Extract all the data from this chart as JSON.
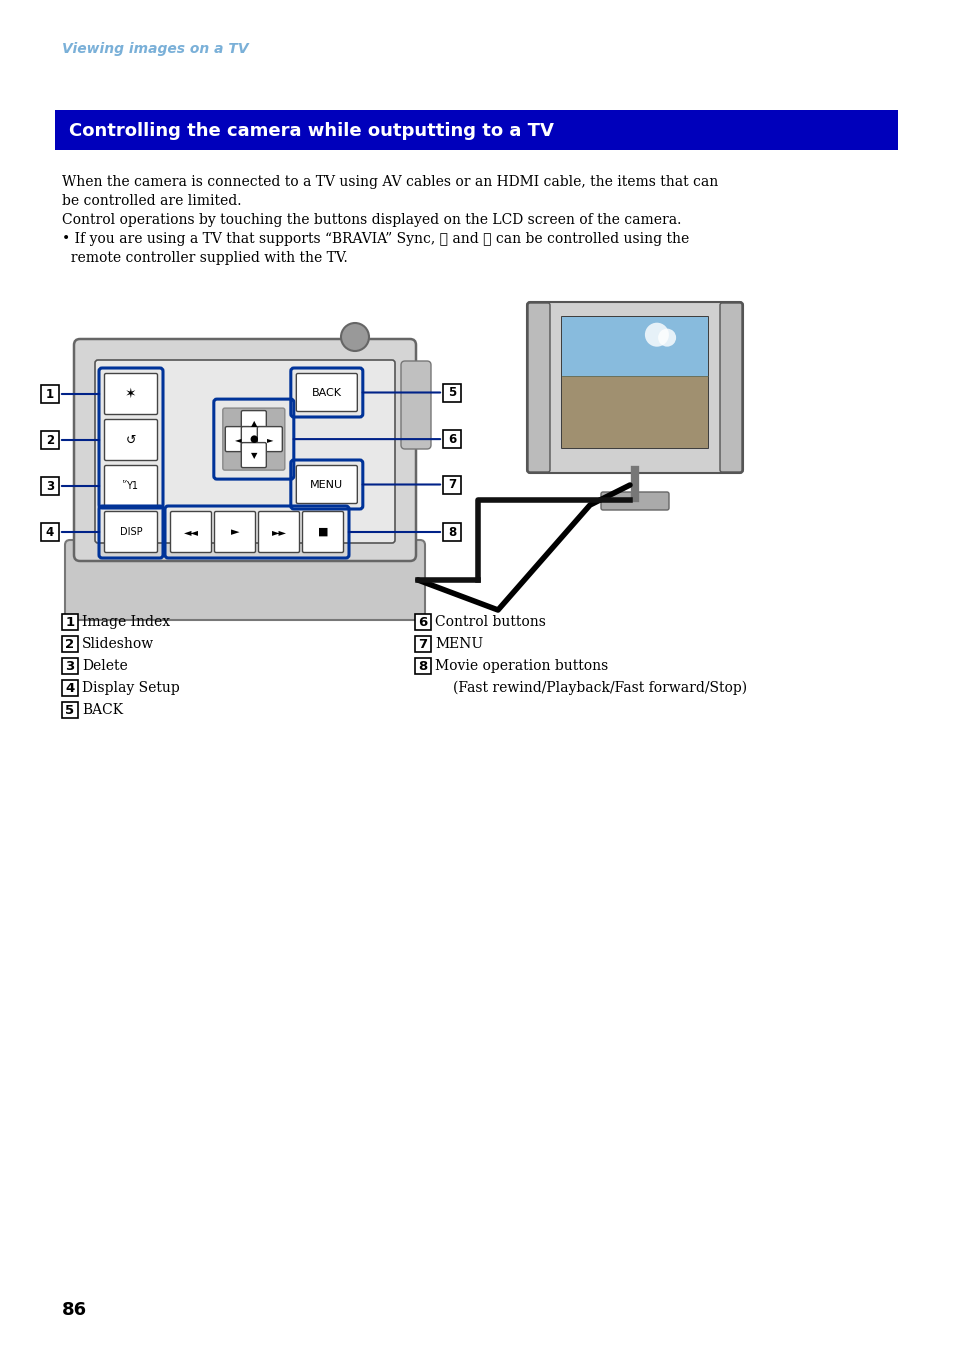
{
  "page_bg": "#ffffff",
  "header_color": "#7ab0d8",
  "header_text": "Viewing images on a TV",
  "header_fontsize": 10,
  "title_bar_color": "#0000bb",
  "title_bar_text": "Controlling the camera while outputting to a TV",
  "title_bar_text_color": "#ffffff",
  "title_bar_fontsize": 13,
  "body_fontsize": 10,
  "body_lines": [
    "When the camera is connected to a TV using AV cables or an HDMI cable, the items that can",
    "be controlled are limited.",
    "Control operations by touching the buttons displayed on the LCD screen of the camera.",
    "• If you are using a TV that supports “BRAVIA” Sync, ６ and ７ can be controlled using the",
    "  remote controller supplied with the TV."
  ],
  "left_labels": [
    [
      "1",
      "Image Index"
    ],
    [
      "2",
      "Slideshow"
    ],
    [
      "3",
      "Delete"
    ],
    [
      "4",
      "Display Setup"
    ],
    [
      "5",
      "BACK"
    ]
  ],
  "right_labels": [
    [
      "6",
      "Control buttons"
    ],
    [
      "7",
      "MENU"
    ],
    [
      "8",
      "Movie operation buttons"
    ],
    [
      "",
      "(Fast rewind/Playback/Fast forward/Stop)"
    ]
  ],
  "page_number": "86",
  "label_fontsize": 10,
  "page_num_fontsize": 13
}
